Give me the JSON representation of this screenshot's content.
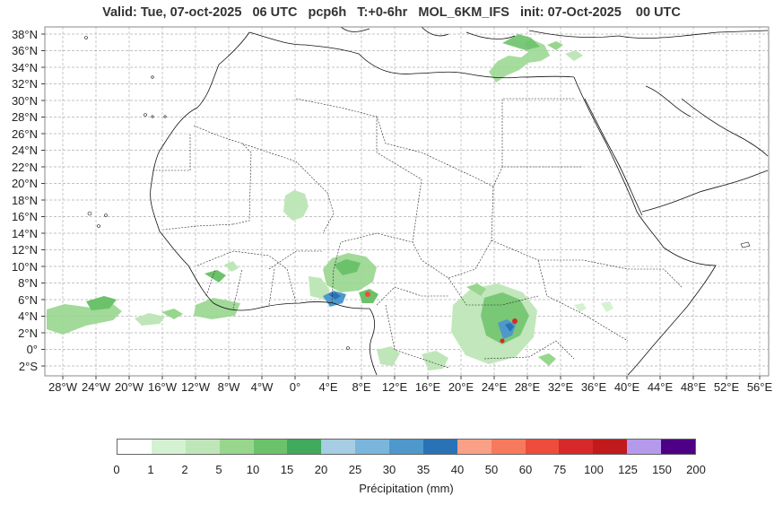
{
  "title": "Valid: Tue, 07-oct-2025   06 UTC   pcp6h   T:+0-6hr   MOL_6KM_IFS   init: 07-Oct-2025    00 UTC",
  "lat_labels": [
    "38°N",
    "36°N",
    "34°N",
    "32°N",
    "30°N",
    "28°N",
    "26°N",
    "24°N",
    "22°N",
    "20°N",
    "18°N",
    "16°N",
    "14°N",
    "12°N",
    "10°N",
    "8°N",
    "6°N",
    "4°N",
    "2°N",
    "0°",
    "2°S"
  ],
  "lon_labels": [
    "28°W",
    "24°W",
    "20°W",
    "16°W",
    "12°W",
    "8°W",
    "4°W",
    "0°",
    "4°E",
    "8°E",
    "12°E",
    "16°E",
    "20°E",
    "24°E",
    "28°E",
    "32°E",
    "36°E",
    "40°E",
    "44°E",
    "48°E",
    "52°E",
    "56°E"
  ],
  "colorbar": {
    "ticks": [
      "0",
      "1",
      "2",
      "5",
      "10",
      "15",
      "20",
      "25",
      "30",
      "35",
      "40",
      "50",
      "60",
      "75",
      "100",
      "125",
      "150",
      "200"
    ],
    "colors": [
      "#ffffff",
      "#d4f2d1",
      "#bfe6b8",
      "#98d68e",
      "#6cc26a",
      "#3fa95c",
      "#a6cde3",
      "#7ab6dc",
      "#4f98cb",
      "#2a72b6",
      "#f9a086",
      "#f77a5e",
      "#ee4c3d",
      "#d7282a",
      "#c01a1c",
      "#b59aec",
      "#4d0085"
    ],
    "label": "Précipitation (mm)"
  }
}
